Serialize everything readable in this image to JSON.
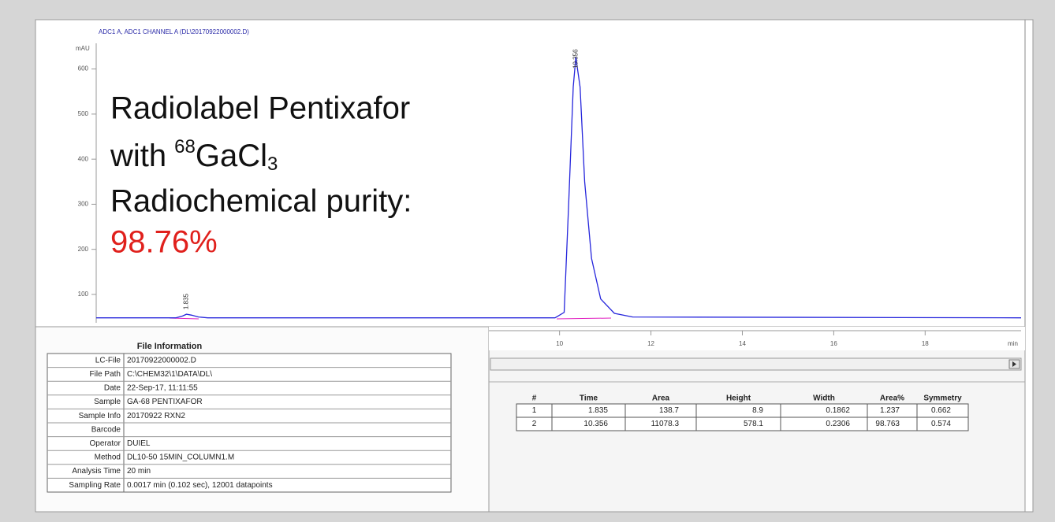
{
  "chart": {
    "type": "line",
    "title": "ADC1 A, ADC1 CHANNEL A (DL\\20170922000002.D)",
    "y_unit": "mAU",
    "x_unit": "min",
    "xlim": [
      -0.14,
      20.1
    ],
    "ylim": [
      37,
      657
    ],
    "xticks": [
      10,
      12,
      14,
      16,
      18
    ],
    "yticks": [
      100,
      200,
      300,
      400,
      500,
      600
    ],
    "series": [
      {
        "color": "#2626dc",
        "x": [
          -0.14,
          1.6,
          1.75,
          1.835,
          1.95,
          2.1,
          2.3,
          9.9,
          10.1,
          10.2,
          10.3,
          10.356,
          10.45,
          10.55,
          10.7,
          10.9,
          11.2,
          11.6,
          20.1
        ],
        "values": [
          48,
          48,
          52,
          56,
          54,
          50,
          48,
          48,
          60,
          300,
          560,
          626,
          560,
          350,
          180,
          90,
          58,
          50,
          48
        ]
      }
    ],
    "peak_labels": [
      1.835,
      10.356
    ]
  },
  "overlay": {
    "line1": "Radiolabel Pentixafor",
    "line2_prefix": "with",
    "line2_sup": "68",
    "line2_main": "GaCl",
    "line2_sub": "3",
    "line3": "Radiochemical purity:",
    "purity": "98.76%"
  },
  "file_info": {
    "title": "File Information",
    "rows": [
      [
        "LC-File",
        "20170922000002.D"
      ],
      [
        "File Path",
        "C:\\CHEM32\\1\\DATA\\DL\\"
      ],
      [
        "Date",
        "22-Sep-17, 11:11:55"
      ],
      [
        "Sample",
        "GA-68 PENTIXAFOR"
      ],
      [
        "Sample Info",
        "20170922 RXN2"
      ],
      [
        "Barcode"
      ],
      [
        "Operator",
        "DUIEL"
      ],
      [
        "Method",
        "DL10-50 15MIN_COLUMN1.M"
      ],
      [
        "Analysis Time",
        "20 min"
      ],
      [
        "Sampling Rate",
        "0.0017 min (0.102 sec), 12001 datapoints"
      ]
    ]
  },
  "peak_table": {
    "columns": [
      "#",
      "Time",
      "Area",
      "Height",
      "Width",
      "Area%",
      "Symmetry"
    ],
    "rows": [
      [
        1,
        1.835,
        138.7,
        8.9,
        0.1862,
        1.237,
        0.662
      ],
      [
        2,
        10.356,
        11078.3,
        578.1,
        0.2306,
        98.763,
        0.574
      ]
    ]
  }
}
